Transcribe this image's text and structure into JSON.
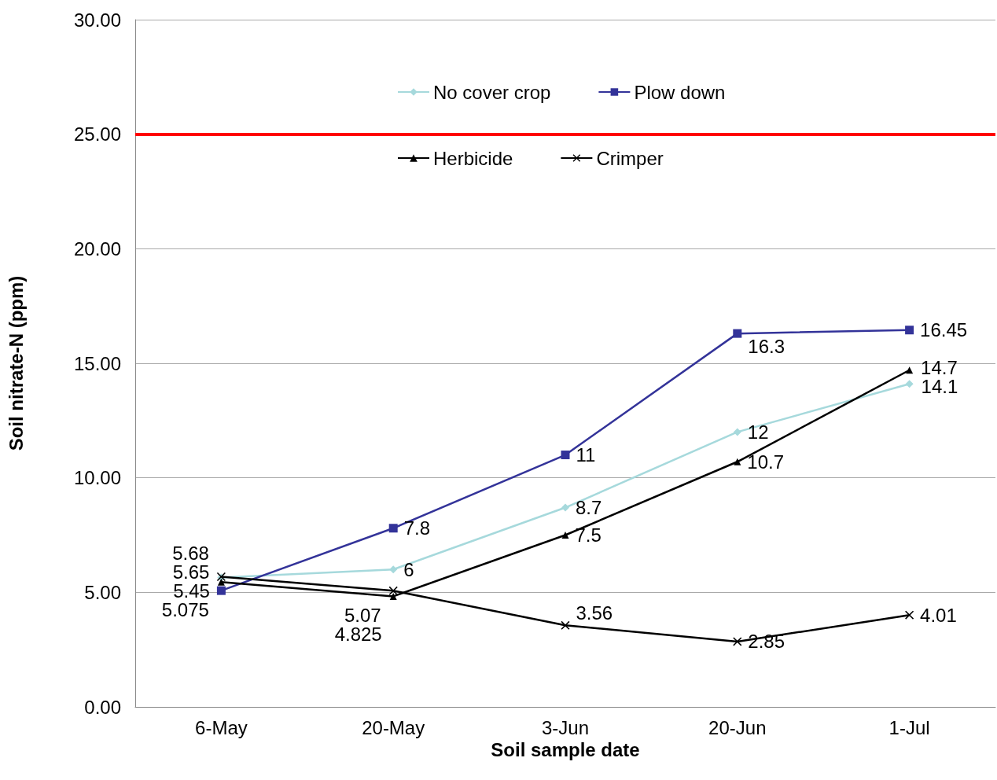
{
  "chart_data": {
    "type": "line",
    "xlabel": "Soil sample date",
    "ylabel": "Soil nitrate-N (ppm)",
    "categories": [
      "6-May",
      "20-May",
      "3-Jun",
      "20-Jun",
      "1-Jul"
    ],
    "series": [
      {
        "name": "No cover crop",
        "color": "#a6d9dc",
        "marker": "diamond",
        "values": [
          5.65,
          6,
          8.7,
          12,
          14.1
        ]
      },
      {
        "name": "Plow down",
        "color": "#333399",
        "marker": "square",
        "values": [
          5.075,
          7.8,
          11,
          16.3,
          16.45
        ]
      },
      {
        "name": "Herbicide",
        "color": "#000000",
        "marker": "triangle",
        "values": [
          5.45,
          4.825,
          7.5,
          10.7,
          14.7
        ]
      },
      {
        "name": "Crimper",
        "color": "#000000",
        "marker": "cross",
        "values": [
          5.68,
          5.07,
          3.56,
          2.85,
          4.01
        ]
      }
    ],
    "ylim": [
      0,
      30
    ],
    "yticks": [
      {
        "value": 0,
        "label": "0.00"
      },
      {
        "value": 5,
        "label": "5.00"
      },
      {
        "value": 10,
        "label": "10.00"
      },
      {
        "value": 15,
        "label": "15.00"
      },
      {
        "value": 20,
        "label": "20.00"
      },
      {
        "value": 25,
        "label": "25.00"
      },
      {
        "value": 30,
        "label": "30.00"
      }
    ],
    "grid": "y",
    "legend": "top",
    "data_labels": true,
    "ref_lines": [
      {
        "axis": "y",
        "value": 25,
        "color": "#ff0000"
      }
    ]
  }
}
